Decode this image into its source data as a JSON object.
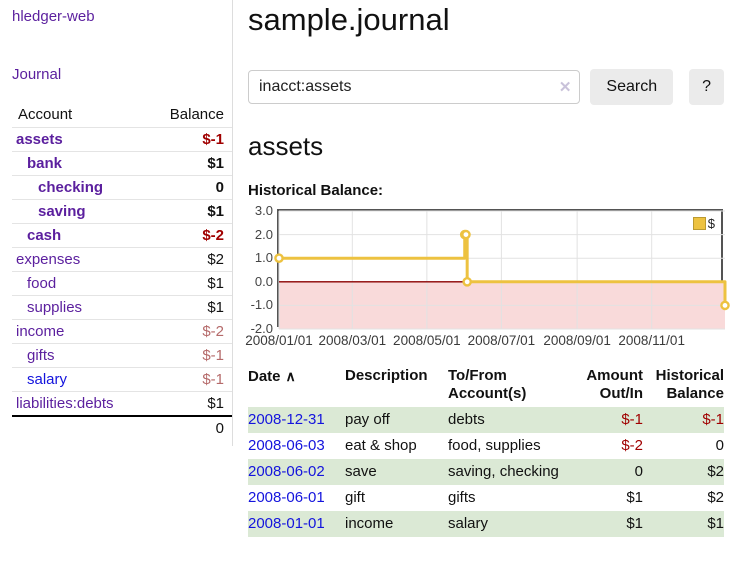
{
  "app": {
    "brand": "hledger-web"
  },
  "colors": {
    "accent_purple": "#5b1f9e",
    "link_blue": "#1414dd",
    "negative_strong": "#a00000",
    "negative_muted": "#b56a6a",
    "row_green": "#dbe9d5",
    "chart_series_yellow": "#edc240",
    "chart_negative_fill": "#f9dada",
    "chart_zero_line": "#8b0000",
    "button_gray": "#ebebeb"
  },
  "sidebar": {
    "nav_journal": "Journal",
    "accounts": {
      "header_account": "Account",
      "header_balance": "Balance",
      "rows": [
        {
          "name": "assets",
          "balance": "$-1",
          "depth": 1,
          "bold": true,
          "neg": "strong",
          "link": "purple"
        },
        {
          "name": "bank",
          "balance": "$1",
          "depth": 2,
          "bold": true,
          "neg": "none",
          "link": "purple"
        },
        {
          "name": "checking",
          "balance": "0",
          "depth": 3,
          "bold": true,
          "neg": "none",
          "link": "purple"
        },
        {
          "name": "saving",
          "balance": "$1",
          "depth": 3,
          "bold": true,
          "neg": "none",
          "link": "purple"
        },
        {
          "name": "cash",
          "balance": "$-2",
          "depth": 2,
          "bold": true,
          "neg": "strong",
          "link": "purple"
        },
        {
          "name": "expenses",
          "balance": "$2",
          "depth": 1,
          "bold": false,
          "neg": "none",
          "link": "purple"
        },
        {
          "name": "food",
          "balance": "$1",
          "depth": 2,
          "bold": false,
          "neg": "none",
          "link": "purple"
        },
        {
          "name": "supplies",
          "balance": "$1",
          "depth": 2,
          "bold": false,
          "neg": "none",
          "link": "purple"
        },
        {
          "name": "income",
          "balance": "$-2",
          "depth": 1,
          "bold": false,
          "neg": "muted",
          "link": "purple"
        },
        {
          "name": "gifts",
          "balance": "$-1",
          "depth": 2,
          "bold": false,
          "neg": "muted",
          "link": "purple"
        },
        {
          "name": "salary",
          "balance": "$-1",
          "depth": 2,
          "bold": false,
          "neg": "muted",
          "link": "blue"
        },
        {
          "name": "liabilities:debts",
          "balance": "$1",
          "depth": 1,
          "bold": false,
          "neg": "none",
          "link": "purple"
        }
      ],
      "total": "0"
    }
  },
  "header": {
    "title": "sample.journal"
  },
  "search": {
    "value": "inacct:assets",
    "clear_icon": "✕",
    "button_label": "Search",
    "help_label": "?"
  },
  "register": {
    "heading": "assets",
    "chart_label": "Historical Balance:",
    "table": {
      "headers": {
        "date": "Date",
        "sort_icon": "∧",
        "description": "Description",
        "tofrom_1": "To/From",
        "tofrom_2": "Account(s)",
        "amount_1": "Amount",
        "amount_2": "Out/In",
        "balance_1": "Historical",
        "balance_2": "Balance"
      },
      "rows": [
        {
          "date": "2008-12-31",
          "description": "pay off",
          "accounts": "debts",
          "amount": "$-1",
          "amount_neg": true,
          "balance": "$-1",
          "balance_neg": true,
          "green": true
        },
        {
          "date": "2008-06-03",
          "description": "eat & shop",
          "accounts": "food, supplies",
          "amount": "$-2",
          "amount_neg": true,
          "balance": "0",
          "balance_neg": false,
          "green": false
        },
        {
          "date": "2008-06-02",
          "description": "save",
          "accounts": "saving, checking",
          "amount": "0",
          "amount_neg": false,
          "balance": "$2",
          "balance_neg": false,
          "green": true
        },
        {
          "date": "2008-06-01",
          "description": "gift",
          "accounts": "gifts",
          "amount": "$1",
          "amount_neg": false,
          "balance": "$2",
          "balance_neg": false,
          "green": false
        },
        {
          "date": "2008-01-01",
          "description": "income",
          "accounts": "salary",
          "amount": "$1",
          "amount_neg": false,
          "balance": "$1",
          "balance_neg": false,
          "green": true
        }
      ]
    }
  },
  "chart_data": {
    "type": "line",
    "title": "Historical Balance",
    "series": [
      {
        "name": "$",
        "color": "#edc240",
        "step": true,
        "markers": true,
        "x": [
          "2008-01-01",
          "2008-06-01",
          "2008-06-02",
          "2008-06-03",
          "2008-12-31"
        ],
        "y": [
          1,
          2,
          2,
          0,
          -1
        ]
      }
    ],
    "xlim": [
      "2008-01-01",
      "2008-12-31"
    ],
    "ylim": [
      -2,
      3
    ],
    "x_ticks": [
      "2008/01/01",
      "2008/03/01",
      "2008/05/01",
      "2008/07/01",
      "2008/09/01",
      "2008/11/01"
    ],
    "y_ticks": [
      3.0,
      2.0,
      1.0,
      0.0,
      -1.0,
      -2.0
    ],
    "grid": true,
    "legend": {
      "position": "top-right",
      "entries": [
        "$"
      ]
    },
    "negative_region_fill": "#f9dada",
    "zero_line_color": "#8b0000"
  }
}
